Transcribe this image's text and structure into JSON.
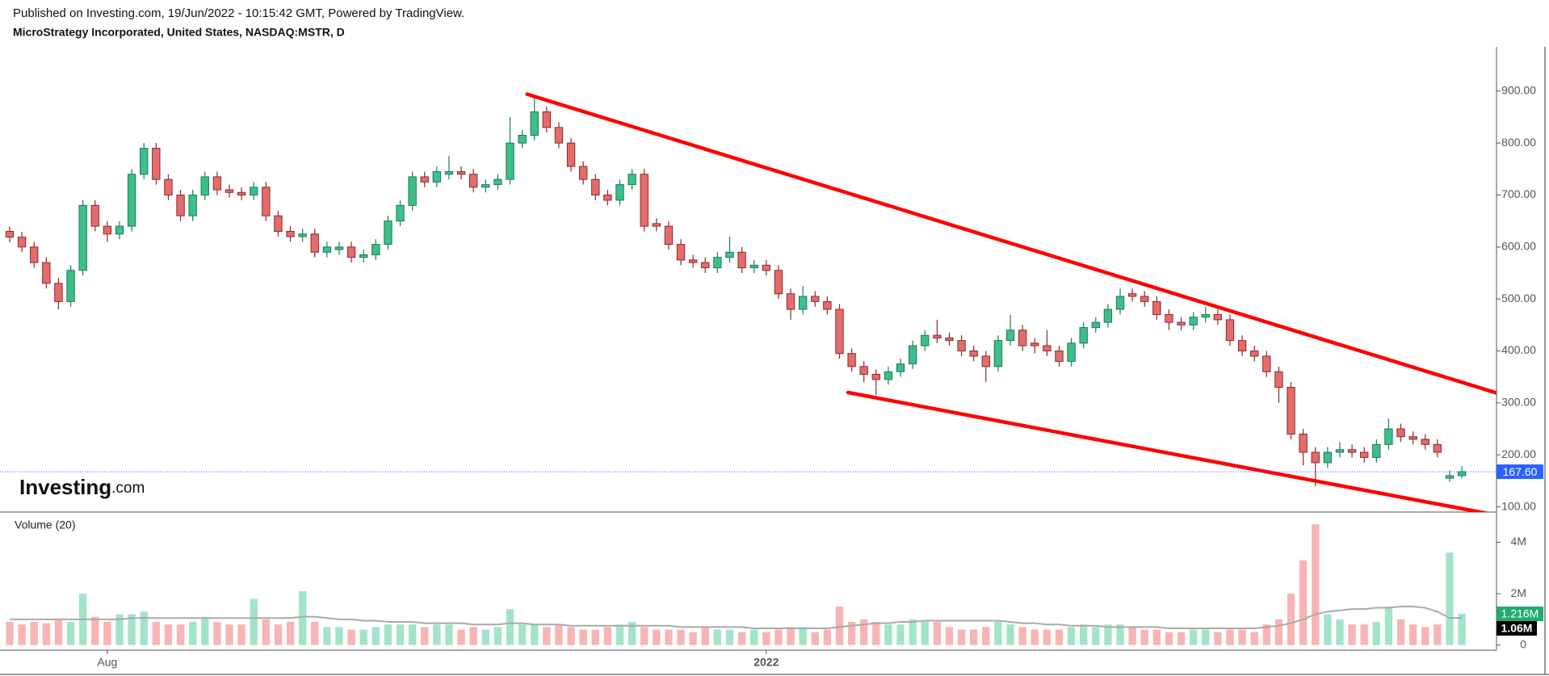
{
  "chart_data": {
    "type": "candlestick",
    "published": "Published on Investing.com, 19/Jun/2022 - 10:15:42 GMT, Powered by TradingView.",
    "title": "MicroStrategy Incorporated, United States, NASDAQ:MSTR, D",
    "logo": {
      "brand": "Investing",
      "suffix": ".com"
    },
    "categories": [
      null,
      null,
      null,
      null,
      null,
      null,
      null,
      null,
      "Aug",
      null,
      null,
      null,
      null,
      null,
      null,
      null,
      null,
      null,
      null,
      null,
      null,
      null,
      null,
      null,
      null,
      null,
      null,
      null,
      null,
      null,
      null,
      null,
      null,
      null,
      null,
      null,
      null,
      null,
      null,
      null,
      null,
      null,
      null,
      null,
      null,
      null,
      null,
      null,
      null,
      null,
      null,
      null,
      null,
      null,
      null,
      null,
      null,
      null,
      null,
      null,
      null,
      null,
      "2022",
      null,
      null,
      null,
      null,
      null,
      null,
      null,
      null,
      null,
      null,
      null,
      null,
      null,
      null,
      null,
      null,
      null,
      null,
      null,
      null,
      null,
      null,
      null,
      null,
      null,
      null,
      null,
      null,
      null,
      null,
      null,
      null,
      null,
      null,
      null,
      null,
      null,
      null,
      null,
      null,
      null,
      null,
      null,
      null,
      null,
      null,
      null,
      null,
      null,
      null,
      null,
      null,
      null,
      null,
      null,
      null,
      null
    ],
    "open": [
      630,
      619,
      600,
      570,
      530,
      495,
      555,
      680,
      640,
      625,
      640,
      740,
      790,
      730,
      700,
      660,
      700,
      735,
      710,
      705,
      700,
      715,
      660,
      630,
      620,
      625,
      590,
      595,
      600,
      580,
      585,
      605,
      650,
      680,
      735,
      725,
      740,
      745,
      740,
      715,
      720,
      730,
      800,
      815,
      860,
      830,
      800,
      755,
      730,
      700,
      690,
      720,
      740,
      645,
      640,
      605,
      575,
      570,
      560,
      580,
      590,
      560,
      565,
      555,
      510,
      480,
      505,
      495,
      480,
      395,
      370,
      355,
      345,
      360,
      375,
      410,
      430,
      425,
      420,
      400,
      390,
      370,
      420,
      440,
      415,
      410,
      400,
      380,
      415,
      445,
      455,
      480,
      510,
      505,
      495,
      470,
      455,
      450,
      465,
      470,
      460,
      420,
      400,
      390,
      360,
      330,
      240,
      205,
      185,
      205,
      210,
      205,
      195,
      220,
      250,
      235,
      230,
      220,
      155,
      160
    ],
    "high": [
      640,
      629,
      610,
      580,
      540,
      565,
      690,
      690,
      650,
      650,
      750,
      800,
      800,
      740,
      710,
      710,
      745,
      745,
      720,
      715,
      725,
      725,
      670,
      640,
      635,
      635,
      610,
      610,
      610,
      595,
      615,
      660,
      690,
      745,
      745,
      755,
      775,
      755,
      750,
      730,
      740,
      850,
      825,
      890,
      870,
      840,
      810,
      765,
      740,
      710,
      730,
      750,
      750,
      655,
      650,
      615,
      585,
      580,
      590,
      620,
      600,
      575,
      575,
      565,
      520,
      525,
      515,
      505,
      490,
      405,
      380,
      365,
      370,
      385,
      420,
      440,
      460,
      435,
      430,
      410,
      400,
      430,
      470,
      450,
      425,
      440,
      410,
      425,
      455,
      465,
      490,
      520,
      520,
      515,
      505,
      480,
      465,
      475,
      485,
      480,
      470,
      430,
      410,
      400,
      370,
      340,
      250,
      215,
      215,
      225,
      220,
      215,
      230,
      270,
      260,
      245,
      240,
      230,
      170,
      178
    ],
    "low": [
      609,
      590,
      560,
      520,
      480,
      485,
      545,
      630,
      610,
      615,
      630,
      730,
      720,
      690,
      650,
      650,
      690,
      700,
      695,
      690,
      690,
      650,
      620,
      610,
      610,
      580,
      580,
      585,
      570,
      570,
      575,
      595,
      640,
      670,
      715,
      715,
      730,
      730,
      705,
      705,
      710,
      720,
      790,
      805,
      820,
      790,
      745,
      720,
      690,
      680,
      680,
      710,
      630,
      630,
      595,
      565,
      560,
      550,
      550,
      570,
      550,
      550,
      545,
      500,
      460,
      470,
      485,
      470,
      385,
      360,
      340,
      315,
      335,
      350,
      365,
      400,
      415,
      410,
      390,
      380,
      340,
      360,
      410,
      400,
      395,
      390,
      370,
      370,
      405,
      435,
      445,
      470,
      495,
      485,
      460,
      440,
      440,
      440,
      455,
      450,
      410,
      390,
      380,
      350,
      300,
      230,
      180,
      140,
      175,
      195,
      195,
      185,
      185,
      210,
      225,
      220,
      210,
      195,
      148,
      155
    ],
    "close": [
      619,
      600,
      570,
      530,
      495,
      555,
      680,
      640,
      625,
      640,
      740,
      790,
      730,
      700,
      660,
      700,
      735,
      710,
      705,
      700,
      715,
      660,
      630,
      620,
      625,
      590,
      600,
      600,
      580,
      585,
      605,
      650,
      680,
      735,
      725,
      745,
      745,
      740,
      715,
      720,
      730,
      800,
      815,
      860,
      830,
      800,
      755,
      730,
      700,
      690,
      720,
      740,
      640,
      640,
      605,
      575,
      570,
      560,
      580,
      590,
      560,
      565,
      555,
      510,
      480,
      505,
      495,
      480,
      395,
      370,
      355,
      345,
      360,
      375,
      410,
      430,
      425,
      420,
      400,
      390,
      370,
      420,
      440,
      410,
      410,
      400,
      380,
      415,
      445,
      455,
      480,
      505,
      505,
      495,
      470,
      455,
      450,
      465,
      470,
      460,
      420,
      400,
      390,
      360,
      330,
      240,
      205,
      185,
      205,
      210,
      205,
      195,
      220,
      250,
      235,
      230,
      220,
      205,
      160,
      167.6
    ],
    "up_color": "#3dbf8a",
    "up_edge": "#1d7a55",
    "down_color": "#e46c6c",
    "down_edge": "#8a2a2a",
    "last_label": "167.60",
    "last_color": "#2962ff",
    "ylim": [
      90,
      982
    ],
    "yticks": [
      {
        "value": 100,
        "label": "100.00"
      },
      {
        "value": 200,
        "label": "200.00"
      },
      {
        "value": 300,
        "label": "300.00"
      },
      {
        "value": 400,
        "label": "400.00"
      },
      {
        "value": 500,
        "label": "500.00"
      },
      {
        "value": 600,
        "label": "600.00"
      },
      {
        "value": 700,
        "label": "700.00"
      },
      {
        "value": 800,
        "label": "800.00"
      },
      {
        "value": 900,
        "label": "900.00"
      }
    ],
    "grid": false,
    "trendlines": [
      {
        "x": [
          42.4,
          122.0
        ],
        "y": [
          894,
          318
        ]
      },
      {
        "x": [
          68.7,
          121.6
        ],
        "y": [
          320,
          85
        ]
      }
    ],
    "trendline_color": "#ff0000",
    "volume": {
      "title": "Volume (20)",
      "values": [
        900000,
        800000,
        900000,
        850000,
        1000000,
        900000,
        2000000,
        1100000,
        900000,
        1200000,
        1200000,
        1300000,
        900000,
        800000,
        800000,
        900000,
        1100000,
        900000,
        800000,
        800000,
        1800000,
        1000000,
        800000,
        900000,
        2100000,
        900000,
        700000,
        700000,
        600000,
        600000,
        700000,
        800000,
        800000,
        800000,
        700000,
        800000,
        800000,
        600000,
        700000,
        600000,
        700000,
        1400000,
        800000,
        800000,
        700000,
        800000,
        700000,
        600000,
        600000,
        700000,
        800000,
        900000,
        700000,
        600000,
        600000,
        600000,
        500000,
        700000,
        600000,
        600000,
        500000,
        600000,
        500000,
        600000,
        700000,
        700000,
        500000,
        600000,
        1500000,
        900000,
        1000000,
        900000,
        800000,
        800000,
        1000000,
        900000,
        900000,
        700000,
        600000,
        600000,
        700000,
        900000,
        800000,
        700000,
        600000,
        600000,
        600000,
        700000,
        800000,
        700000,
        800000,
        800000,
        700000,
        600000,
        600000,
        500000,
        500000,
        600000,
        600000,
        500000,
        600000,
        600000,
        500000,
        800000,
        1000000,
        2000000,
        3300000,
        4700000,
        1200000,
        1000000,
        800000,
        800000,
        900000,
        1500000,
        1000000,
        800000,
        700000,
        800000,
        3600000,
        1216000
      ],
      "last_label": "1.216M",
      "last_color": "#22ab70",
      "up_color": "#a3e4c9",
      "down_color": "#f8b4b4",
      "ylim": [
        -200000,
        5180000
      ],
      "yticks": [
        0,
        {
          "value": 2000000,
          "label": "2M"
        },
        {
          "value": 4000000,
          "label": "4M"
        }
      ],
      "ma": {
        "values": [
          1000000,
          1000000,
          1000000,
          1000000,
          1000000,
          1000000,
          1000000,
          1000000,
          1000000,
          1000000,
          1050000,
          1050000,
          1050000,
          1050000,
          1050000,
          1050000,
          1050000,
          1050000,
          1050000,
          1050000,
          1050000,
          1050000,
          1050000,
          1050000,
          1100000,
          1100000,
          1050000,
          1000000,
          1000000,
          950000,
          950000,
          900000,
          900000,
          900000,
          850000,
          850000,
          850000,
          850000,
          800000,
          800000,
          800000,
          850000,
          850000,
          800000,
          800000,
          800000,
          750000,
          750000,
          750000,
          750000,
          750000,
          750000,
          750000,
          750000,
          750000,
          700000,
          700000,
          700000,
          700000,
          700000,
          700000,
          650000,
          650000,
          650000,
          650000,
          650000,
          650000,
          650000,
          700000,
          750000,
          800000,
          850000,
          850000,
          900000,
          900000,
          950000,
          950000,
          950000,
          950000,
          950000,
          950000,
          950000,
          900000,
          850000,
          850000,
          800000,
          800000,
          750000,
          750000,
          750000,
          700000,
          700000,
          700000,
          700000,
          700000,
          650000,
          650000,
          650000,
          650000,
          650000,
          650000,
          650000,
          650000,
          700000,
          750000,
          850000,
          1000000,
          1200000,
          1300000,
          1350000,
          1400000,
          1400000,
          1450000,
          1450000,
          1500000,
          1500000,
          1450000,
          1300000,
          1050000,
          1060000
        ],
        "last_label": "1.06M",
        "color": "#aaaaaa",
        "label_color": "#000000"
      }
    }
  }
}
